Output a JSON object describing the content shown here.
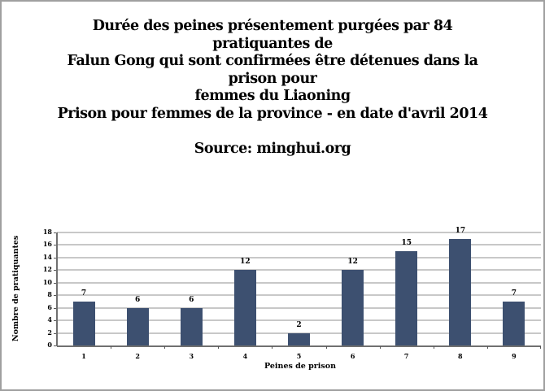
{
  "title_lines": [
    "Durée des peines présentement purgées par 84",
    "pratiquantes de",
    "Falun Gong qui sont confirmées être détenues dans la",
    "prison pour",
    "femmes du Liaoning",
    "Prison pour femmes de la province - en date d'avril 2014",
    "",
    "Source: minghui.org"
  ],
  "chart_data": {
    "type": "bar",
    "title": "Durée des peines présentement purgées par 84 pratiquantes de Falun Gong qui sont confirmées être détenues dans la prison pour femmes du Liaoning Prison pour femmes de la province - en date d'avril 2014 — Source: minghui.org",
    "categories": [
      "1",
      "2",
      "3",
      "4",
      "5",
      "6",
      "7",
      "8",
      "9"
    ],
    "values": [
      7,
      6,
      6,
      12,
      2,
      12,
      15,
      17,
      7
    ],
    "data_labels": [
      "7",
      "6",
      "6",
      "12",
      "2",
      "12",
      "15",
      "17",
      "7"
    ],
    "xlabel": "Peines de prison",
    "ylabel": "Nombre de pratiquantes",
    "ylim": [
      0,
      18
    ],
    "yticks": [
      "0",
      "2",
      "4",
      "6",
      "8",
      "10",
      "12",
      "14",
      "16",
      "18"
    ],
    "grid": true,
    "legend": null,
    "bar_color": "#3d5070"
  }
}
